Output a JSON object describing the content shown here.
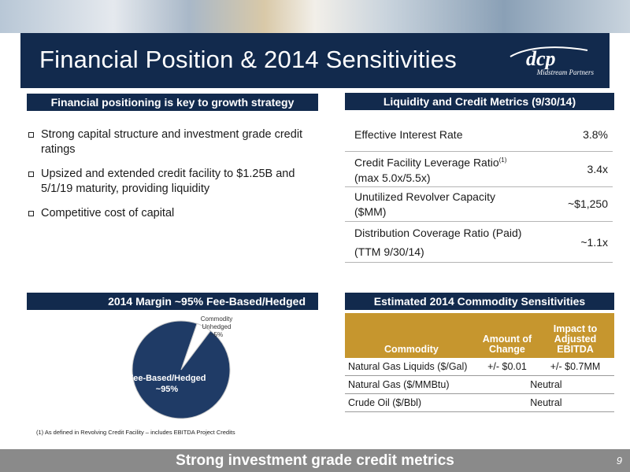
{
  "slide": {
    "title": "Financial Position & 2014 Sensitivities",
    "logo": {
      "mark": "dcp",
      "subtitle": "Midstream Partners"
    },
    "page_number": "9",
    "bottom_banner": "Strong investment grade credit metrics"
  },
  "financial_positioning": {
    "header": "Financial positioning is key to growth strategy",
    "bullets": [
      "Strong capital structure and investment grade credit ratings",
      "Upsized and extended credit facility to $1.25B and 5/1/19 maturity, providing liquidity",
      "Competitive cost of capital"
    ]
  },
  "liquidity": {
    "header": "Liquidity and Credit Metrics (9/30/14)",
    "rows": [
      {
        "label_line1": "Effective Interest Rate",
        "label_sup": "",
        "label_line2": "",
        "value": "3.8%"
      },
      {
        "label_line1": "Credit Facility Leverage Ratio",
        "label_sup": "(1)",
        "label_line2": "(max 5.0x/5.5x)",
        "value": "3.4x"
      },
      {
        "label_line1": "Unutilized Revolver Capacity",
        "label_sup": "",
        "label_line2": "($MM)",
        "value": "~$1,250"
      },
      {
        "label_line1": "Distribution Coverage Ratio (Paid)",
        "label_sup": "",
        "label_line2": "(TTM 9/30/14)",
        "value": "~1.1x"
      }
    ]
  },
  "margin": {
    "header": "2014 Margin ~95% Fee-Based/Hedged",
    "colors": {
      "fee_based": "#1f3b66",
      "commodity": "#ffffff"
    }
  },
  "chart_data": {
    "type": "pie",
    "title": "2014 Margin ~95% Fee-Based/Hedged",
    "slices": [
      {
        "label": "Fee-Based/Hedged",
        "value_label": "~95%",
        "value": 95
      },
      {
        "label": "Commodity Unhedged",
        "value_label": "~5%",
        "value": 5
      }
    ]
  },
  "footnote": "(1) As defined in Revolving Credit Facility – includes EBITDA Project Credits",
  "sensitivities": {
    "header": "Estimated 2014 Commodity Sensitivities",
    "columns": [
      "Commodity",
      "Amount of Change",
      "Impact to Adjusted EBITDA"
    ],
    "rows": [
      {
        "commodity": "Natural Gas Liquids ($/Gal)",
        "amount": "+/- $0.01",
        "impact": "+/- $0.7MM",
        "merged": ""
      },
      {
        "commodity": "Natural Gas ($/MMBtu)",
        "amount": "",
        "impact": "",
        "merged": "Neutral"
      },
      {
        "commodity": "Crude Oil ($/Bbl)",
        "amount": "",
        "impact": "",
        "merged": "Neutral"
      }
    ]
  }
}
